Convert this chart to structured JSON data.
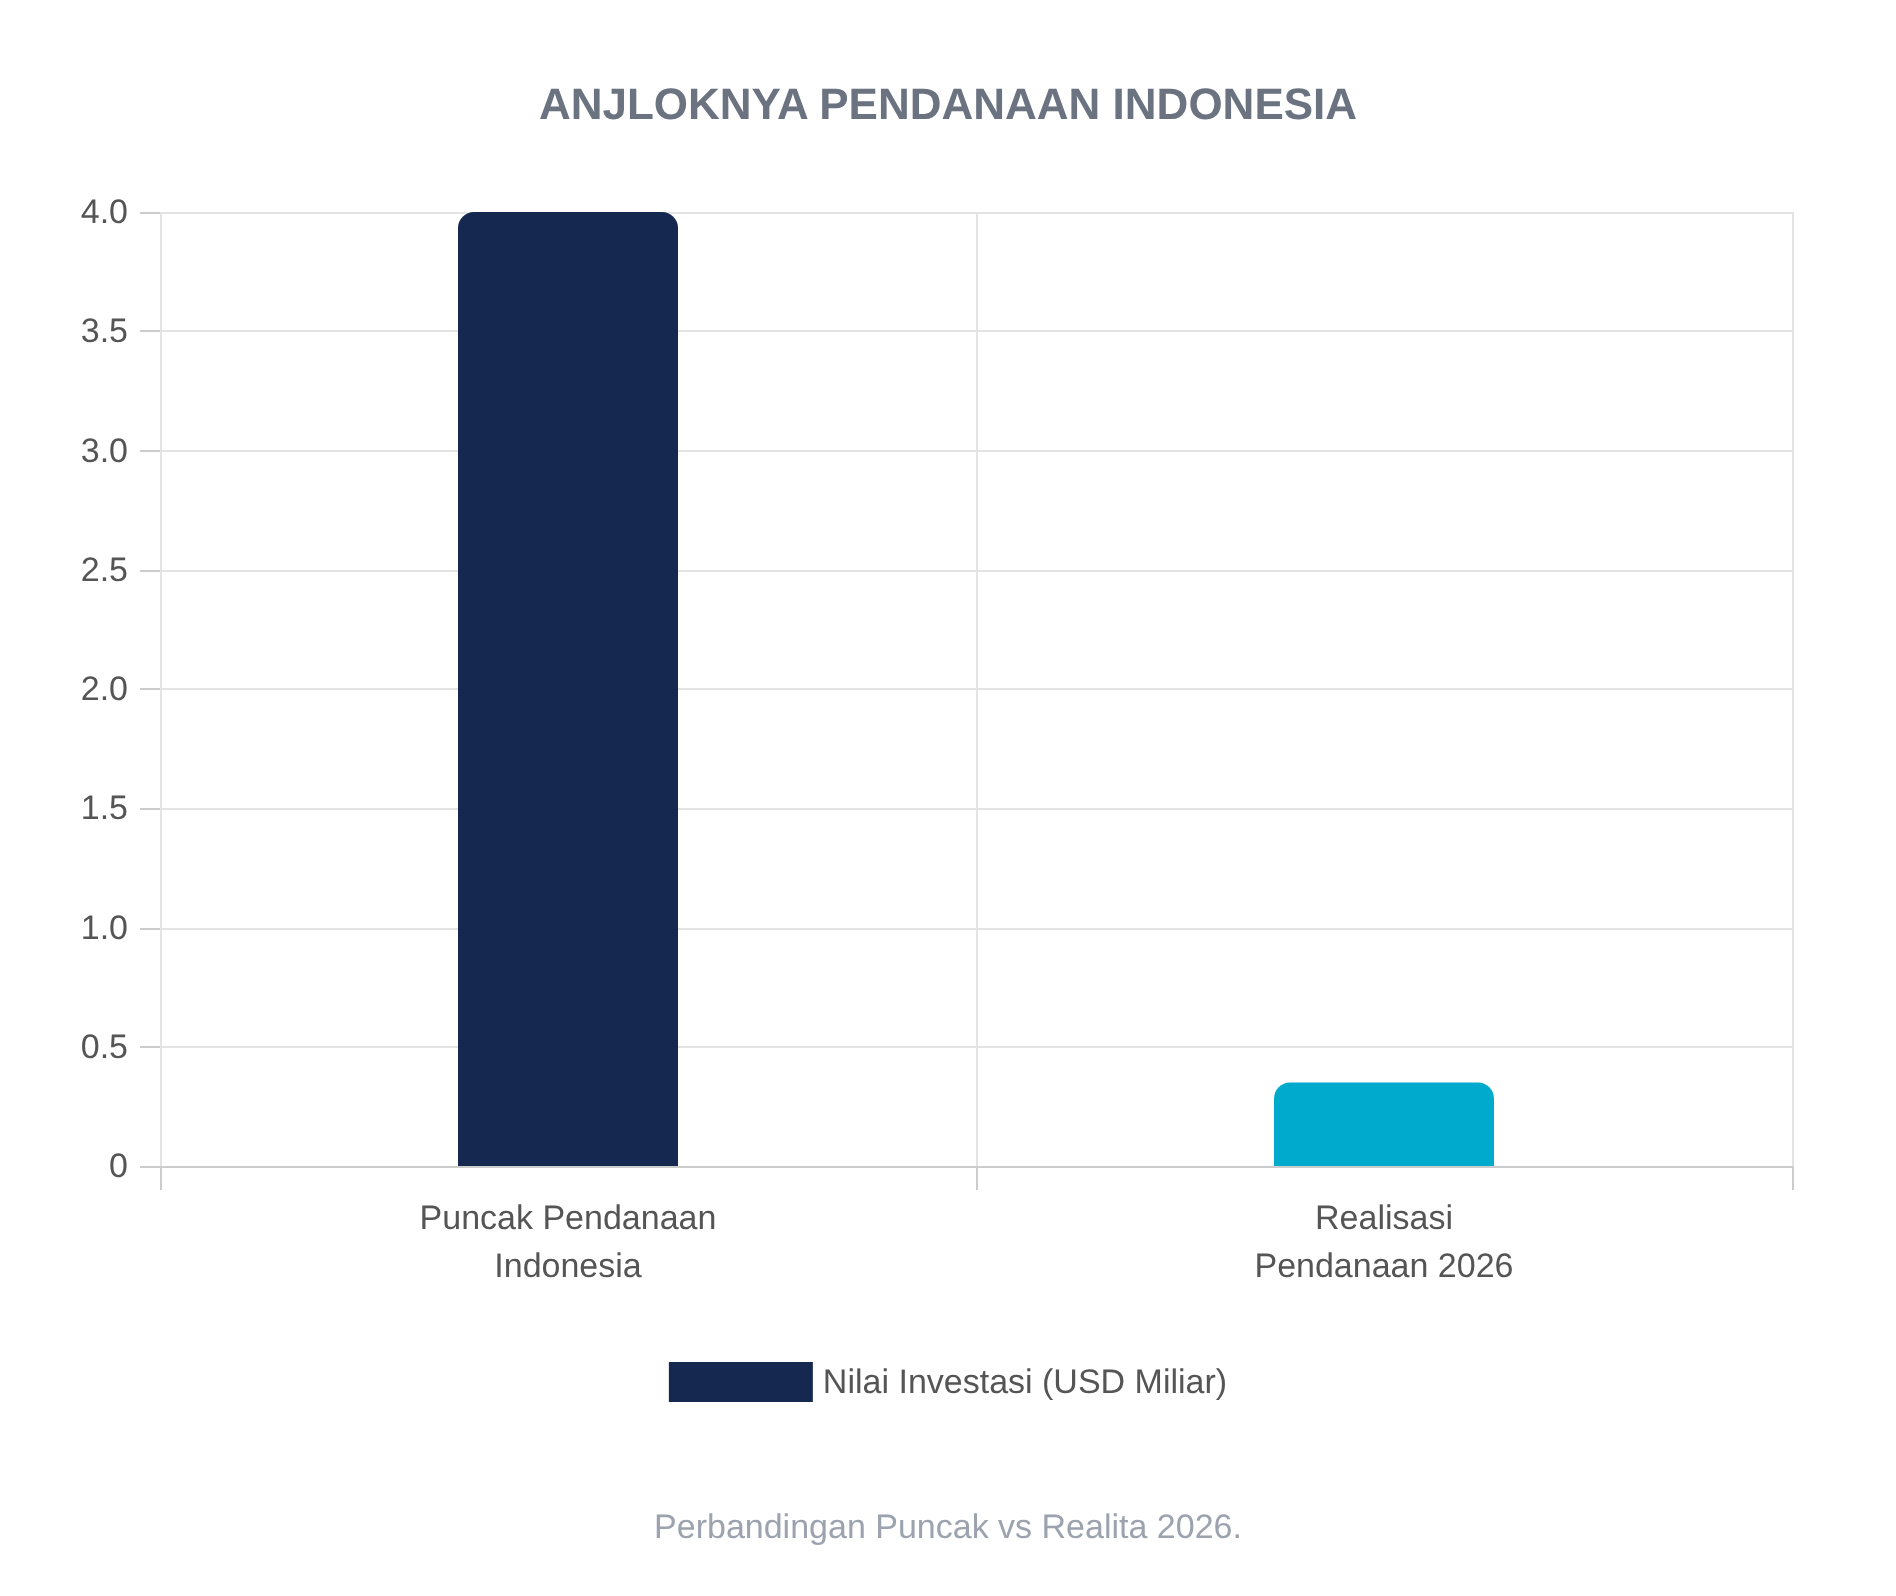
{
  "chart_data": {
    "type": "bar",
    "title": "ANJLOKNYA PENDANAAN INDONESIA",
    "categories": [
      "Puncak Pendanaan\nIndonesia",
      "Realisasi\nPendanaan 2026"
    ],
    "series": [
      {
        "name": "Nilai Investasi (USD Miliar)",
        "colors": [
          "#15284f",
          "#00aacc"
        ],
        "values": [
          4.0,
          0.35
        ]
      }
    ],
    "ylim": [
      0,
      4
    ],
    "yticks": [
      0,
      0.5,
      {
        "value": 1,
        "label": "1.0"
      },
      1.5,
      {
        "value": 2,
        "label": "2.0"
      },
      2.5,
      {
        "value": 3,
        "label": "3.0"
      },
      3.5,
      {
        "value": 4,
        "label": "4.0"
      }
    ],
    "grid": true,
    "legend": "bottom",
    "annotations": [
      "Perbandingan Puncak vs Realita 2026."
    ]
  }
}
